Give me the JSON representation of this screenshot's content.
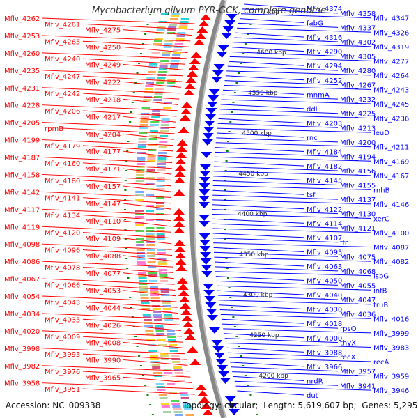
{
  "title": "Mycobacterium gilvum PYR-GCK, complete genome",
  "footer": {
    "accession_label": "Accession:",
    "accession": "NC_009338",
    "topology_label": "Topology:",
    "topology": "circular",
    "length_label": "Length:",
    "length": "5,619,607 bp",
    "genes_label": "Genes:",
    "genes": "5,295"
  },
  "colors": {
    "reverse": "#ff0000",
    "forward": "#0000ff",
    "ticks": "#008800",
    "axis": "#888888"
  },
  "scale_labels": [
    "kbp",
    "4600 kbp",
    "4550 kbp",
    "4500 kbp",
    "4450 kbp",
    "4400 kbp",
    "4350 kbp",
    "4300 kbp",
    "4250 kbp",
    "4200 kbp"
  ],
  "left_labels": [
    "Mflv_4262",
    "Mflv_4261",
    "Mflv_4275",
    "Mflv_4253",
    "Mflv_4265",
    "Mflv_4250",
    "Mflv_4260",
    "Mflv_4240",
    "Mflv_4249",
    "Mflv_4235",
    "Mflv_4247",
    "Mflv_4222",
    "Mflv_4231",
    "Mflv_4242",
    "Mflv_4218",
    "Mflv_4228",
    "Mflv_4206",
    "Mflv_4217",
    "Mflv_4205",
    "rpmB",
    "Mflv_4204",
    "Mflv_4199",
    "Mflv_4179",
    "Mflv_4177",
    "Mflv_4187",
    "Mflv_4160",
    "Mflv_4171",
    "Mflv_4158",
    "Mflv_4180",
    "Mflv_4157",
    "Mflv_4142",
    "Mflv_4141",
    "Mflv_4147",
    "Mflv_4117",
    "Mflv_4134",
    "Mflv_4110",
    "Mflv_4119",
    "Mflv_4120",
    "Mflv_4109",
    "Mflv_4098",
    "Mflv_4096",
    "Mflv_4088",
    "Mflv_4086",
    "Mflv_4078",
    "Mflv_4077",
    "Mflv_4067",
    "Mflv_4066",
    "Mflv_4053",
    "Mflv_4054",
    "Mflv_4043",
    "Mflv_4044",
    "Mflv_4034",
    "Mflv_4035",
    "Mflv_4026",
    "Mflv_4020",
    "Mflv_4009",
    "Mflv_4008",
    "Mflv_3998",
    "Mflv_3993",
    "Mflv_3990",
    "Mflv_3982",
    "Mflv_3976",
    "Mflv_3965",
    "Mflv_3958",
    "Mflv_3951"
  ],
  "right_labels": [
    "Mflv_4374",
    "Mflv_4358",
    "Mflv_4347",
    "fabG",
    "Mflv_4337",
    "Mflv_4326",
    "Mflv_4316",
    "Mflv_4302",
    "Mflv_4319",
    "Mflv_4290",
    "Mflv_4305",
    "Mflv_4277",
    "Mflv_4294",
    "Mflv_4280",
    "Mflv_4264",
    "Mflv_4252",
    "Mflv_4267",
    "Mflv_4243",
    "mnmA",
    "Mflv_4232",
    "Mflv_4245",
    "ddl",
    "Mflv_4225",
    "Mflv_4236",
    "Mflv_4203",
    "Mflv_4213",
    "leuD",
    "rnc",
    "Mflv_4200",
    "Mflv_4211",
    "Mflv_4184",
    "Mflv_4194",
    "Mflv_4169",
    "Mflv_4182",
    "Mflv_4156",
    "Mflv_4167",
    "Mflv_4145",
    "Mflv_4155",
    "rnhB",
    "tsf",
    "Mflv_4137",
    "Mflv_4146",
    "Mflv_4122",
    "Mflv_4130",
    "xerC",
    "Mflv_4114",
    "Mflv_4121",
    "Mflv_4100",
    "Mflv_4107",
    "ffr",
    "Mflv_4087",
    "Mflv_4095",
    "Mflv_4075",
    "Mflv_4082",
    "Mflv_4063",
    "Mflv_4068",
    "ispG",
    "Mflv_4050",
    "Mflv_4055",
    "infB",
    "Mflv_4040",
    "Mflv_4047",
    "truB",
    "Mflv_4030",
    "Mflv_4036",
    "Mflv_4016",
    "Mflv_4018",
    "rpsO",
    "Mflv_3999",
    "Mflv_4000",
    "thyX",
    "Mflv_3983",
    "Mflv_3988",
    "recX",
    "recA",
    "Mflv_3966",
    "Mflv_3957",
    "Mflv_3959",
    "nrdR",
    "Mflv_3941",
    "Mflv_3946",
    "dut"
  ]
}
